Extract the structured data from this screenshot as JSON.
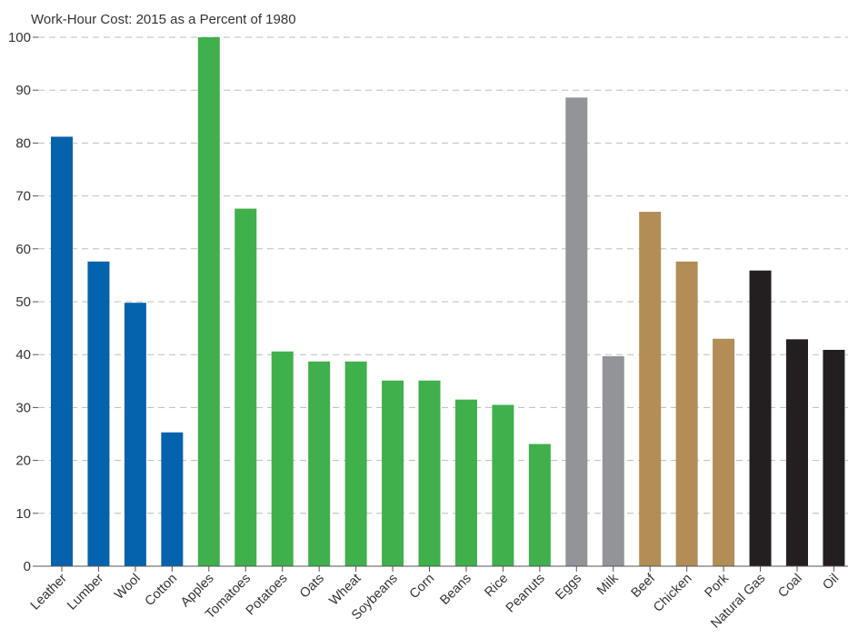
{
  "chart_data": {
    "type": "bar",
    "title": "Work-Hour Cost: 2015 as a Percent of 1980",
    "xlabel": "",
    "ylabel": "",
    "ylim": [
      0,
      100
    ],
    "yticks": [
      0,
      10,
      20,
      30,
      40,
      50,
      60,
      70,
      80,
      90,
      100
    ],
    "grid": true,
    "legend": "none",
    "categories": [
      "Leather",
      "Lumber",
      "Wool",
      "Cotton",
      "Apples",
      "Tomatoes",
      "Potatoes",
      "Oats",
      "Wheat",
      "Soybeans",
      "Corn",
      "Beans",
      "Rice",
      "Peanuts",
      "Eggs",
      "Milk",
      "Beef",
      "Chicken",
      "Pork",
      "Natural Gas",
      "Coal",
      "Oil"
    ],
    "values": [
      81.2,
      57.6,
      49.8,
      25.3,
      100,
      67.6,
      40.6,
      38.7,
      38.7,
      35.1,
      35.1,
      31.5,
      30.5,
      23.1,
      88.6,
      39.7,
      67.0,
      57.6,
      43.0,
      55.9,
      42.9,
      40.9
    ],
    "groups": [
      "materials",
      "materials",
      "materials",
      "materials",
      "crops",
      "crops",
      "crops",
      "crops",
      "crops",
      "crops",
      "crops",
      "crops",
      "crops",
      "crops",
      "animal-products",
      "animal-products",
      "meat",
      "meat",
      "meat",
      "energy",
      "energy",
      "energy"
    ],
    "group_colors": {
      "materials": "#0563ad",
      "crops": "#3fb04b",
      "animal-products": "#929497",
      "meat": "#b38d56",
      "energy": "#231f20"
    }
  }
}
